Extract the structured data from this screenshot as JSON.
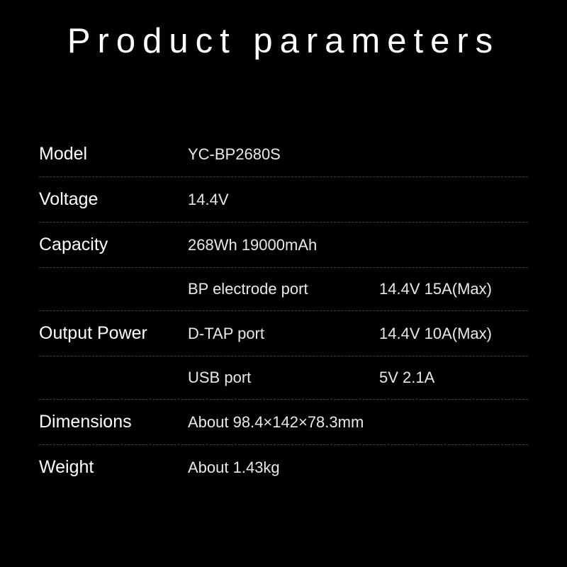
{
  "title": "Product parameters",
  "background_color": "#000000",
  "text_color": "#ffffff",
  "value_text_color": "#e8e8e8",
  "divider_color": "#444444",
  "title_fontsize": 49,
  "title_letterspacing": 10,
  "label_fontsize": 25,
  "value_fontsize": 22,
  "rows": {
    "model": {
      "label": "Model",
      "value": "YC-BP2680S"
    },
    "voltage": {
      "label": "Voltage",
      "value": "14.4V"
    },
    "capacity": {
      "label": "Capacity",
      "value": "268Wh 19000mAh"
    },
    "output_power": {
      "label": "Output Power",
      "ports": [
        {
          "name": "BP electrode port",
          "spec": "14.4V 15A(Max)"
        },
        {
          "name": "D-TAP port",
          "spec": "14.4V 10A(Max)"
        },
        {
          "name": "USB port",
          "spec": "5V 2.1A"
        }
      ]
    },
    "dimensions": {
      "label": "Dimensions",
      "value": "About 98.4×142×78.3mm"
    },
    "weight": {
      "label": "Weight",
      "value": "About 1.43kg"
    }
  }
}
